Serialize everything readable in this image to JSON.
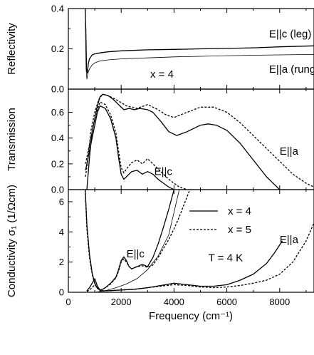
{
  "chart_data": [
    {
      "panel": "reflectivity",
      "type": "line",
      "ylabel": "Reflectivity",
      "xlim": [
        0,
        9300
      ],
      "ylim": [
        0,
        0.4
      ],
      "yticks": [
        "0.0",
        "0.2",
        "0.4"
      ],
      "annotations": [
        {
          "text": "E||c (leg)",
          "x": 7600,
          "y": 0.275
        },
        {
          "text": "E||a (rung)",
          "x": 7600,
          "y": 0.1
        },
        {
          "text": "x = 4",
          "x": 3100,
          "y": 0.075
        }
      ],
      "series": [
        {
          "style": "solid",
          "x": [
            640,
            660,
            690,
            720,
            760,
            800,
            900,
            1000,
            1200,
            1500,
            2000,
            3000,
            4000,
            5000,
            6000,
            7000,
            8000,
            9300
          ],
          "y": [
            0.4,
            0.3,
            0.1,
            0.08,
            0.13,
            0.15,
            0.17,
            0.175,
            0.18,
            0.185,
            0.19,
            0.195,
            0.197,
            0.2,
            0.202,
            0.205,
            0.21,
            0.215
          ]
        },
        {
          "style": "thin",
          "x": [
            640,
            670,
            700,
            740,
            800,
            900,
            1000,
            1200,
            1500,
            2000,
            3000,
            4000,
            5000,
            6000,
            7000,
            8000,
            9300
          ],
          "y": [
            0.4,
            0.1,
            0.05,
            0.08,
            0.1,
            0.12,
            0.13,
            0.14,
            0.145,
            0.15,
            0.155,
            0.16,
            0.163,
            0.166,
            0.168,
            0.17,
            0.172
          ]
        }
      ]
    },
    {
      "panel": "transmission",
      "type": "line",
      "ylabel": "Transmission",
      "xlim": [
        0,
        9300
      ],
      "ylim": [
        0,
        0.78
      ],
      "yticks": [
        "0.0",
        "0.2",
        "0.4",
        "0.6"
      ],
      "annotations": [
        {
          "text": "E||a",
          "x": 8000,
          "y": 0.3
        },
        {
          "text": "E||c",
          "x": 3250,
          "y": 0.14
        }
      ],
      "series": [
        {
          "style": "solid",
          "x": [
            700,
            800,
            900,
            1000,
            1100,
            1200,
            1300,
            1500,
            1700,
            1900,
            2100,
            2300,
            2500,
            2700,
            3000,
            3200,
            3500,
            3800,
            4100,
            4500,
            5000,
            5300,
            5600,
            6000,
            6500,
            7000,
            7500,
            8000
          ],
          "y": [
            0.0,
            0.25,
            0.45,
            0.55,
            0.65,
            0.72,
            0.74,
            0.73,
            0.7,
            0.66,
            0.62,
            0.63,
            0.62,
            0.63,
            0.62,
            0.6,
            0.53,
            0.45,
            0.42,
            0.45,
            0.5,
            0.51,
            0.5,
            0.46,
            0.36,
            0.23,
            0.1,
            0.0
          ]
        },
        {
          "style": "dashed",
          "x": [
            650,
            750,
            850,
            1000,
            1150,
            1300,
            1500,
            1800,
            2200,
            2600,
            3000,
            3400,
            3700,
            4000,
            4500,
            5000,
            5500,
            6000,
            6500,
            7000,
            7500,
            8000,
            8500,
            9000,
            9300
          ],
          "y": [
            0.1,
            0.25,
            0.45,
            0.6,
            0.7,
            0.74,
            0.73,
            0.7,
            0.65,
            0.63,
            0.66,
            0.62,
            0.58,
            0.56,
            0.6,
            0.64,
            0.64,
            0.6,
            0.52,
            0.42,
            0.32,
            0.22,
            0.12,
            0.05,
            0.02
          ]
        },
        {
          "style": "solid",
          "x": [
            650,
            800,
            900,
            1000,
            1100,
            1200,
            1400,
            1600,
            1800,
            1900,
            2000,
            2100,
            2200,
            2400,
            2600,
            2800,
            3000,
            3200,
            3400,
            3600,
            3800,
            4000
          ],
          "y": [
            0.15,
            0.3,
            0.4,
            0.5,
            0.6,
            0.65,
            0.63,
            0.55,
            0.4,
            0.25,
            0.12,
            0.08,
            0.1,
            0.14,
            0.15,
            0.12,
            0.14,
            0.12,
            0.08,
            0.05,
            0.02,
            0.0
          ]
        },
        {
          "style": "dashed",
          "x": [
            650,
            800,
            900,
            1000,
            1100,
            1200,
            1400,
            1600,
            1800,
            1900,
            2000,
            2100,
            2200,
            2400,
            2600,
            2800,
            3000,
            3200,
            3400,
            3600,
            3800,
            4000,
            4200,
            4500
          ],
          "y": [
            0.2,
            0.35,
            0.45,
            0.55,
            0.62,
            0.68,
            0.66,
            0.58,
            0.44,
            0.3,
            0.17,
            0.13,
            0.16,
            0.21,
            0.23,
            0.2,
            0.24,
            0.2,
            0.16,
            0.12,
            0.08,
            0.05,
            0.02,
            0.0
          ]
        }
      ]
    },
    {
      "panel": "conductivity",
      "type": "line",
      "ylabel": "Conductivity σ₁ (1/Ωcm)",
      "xlabel": "Frequency (cm⁻¹)",
      "xlim": [
        0,
        9300
      ],
      "ylim": [
        0,
        6.8
      ],
      "xticks": [
        "0",
        "2000",
        "4000",
        "6000",
        "8000"
      ],
      "xtick_values": [
        0,
        2000,
        4000,
        6000,
        8000
      ],
      "yticks": [
        "0",
        "2",
        "4",
        "6"
      ],
      "annotations": [
        {
          "text": "E||c",
          "x": 2200,
          "y": 2.55
        },
        {
          "text": "T = 4 K",
          "x": 5300,
          "y": 2.3
        },
        {
          "text": "E||a",
          "x": 8000,
          "y": 3.5
        }
      ],
      "legend": {
        "placement": "top-right",
        "entries": [
          {
            "label": "x = 4",
            "style": "solid"
          },
          {
            "label": "x = 5",
            "style": "dashed"
          }
        ]
      },
      "series": [
        {
          "style": "solid",
          "x": [
            640,
            700,
            800,
            900,
            1000,
            1100,
            1200,
            1300,
            1400,
            1600,
            1800,
            1900,
            2000,
            2100,
            2200,
            2300,
            2400,
            2600,
            2800,
            3000,
            3200,
            3400,
            3600,
            3800,
            4000
          ],
          "y": [
            6.8,
            4.5,
            2.5,
            1.3,
            0.6,
            0.25,
            0.15,
            0.2,
            0.3,
            0.6,
            1.0,
            1.5,
            2.1,
            2.35,
            2.1,
            1.7,
            1.55,
            1.7,
            1.85,
            1.7,
            2.3,
            3.2,
            4.3,
            5.5,
            6.8
          ]
        },
        {
          "style": "dashed",
          "x": [
            640,
            700,
            800,
            900,
            1000,
            1100,
            1200,
            1300,
            1400,
            1600,
            1800,
            1900,
            2000,
            2100,
            2200,
            2300,
            2400,
            2600,
            2800,
            3000,
            3200,
            3400,
            3600,
            3800,
            4000,
            4200,
            4400,
            4600
          ],
          "y": [
            6.8,
            4.2,
            2.3,
            1.2,
            0.55,
            0.25,
            0.15,
            0.2,
            0.3,
            0.55,
            0.95,
            1.4,
            2.0,
            2.2,
            2.0,
            1.7,
            1.55,
            1.7,
            1.75,
            1.65,
            1.8,
            2.3,
            2.9,
            3.5,
            4.2,
            5.0,
            5.9,
            6.8
          ]
        },
        {
          "style": "thin",
          "x": [
            1000,
            1400,
            1800,
            2200,
            2600,
            3000,
            3400,
            3800,
            4200
          ],
          "y": [
            0.0,
            0.1,
            0.3,
            0.55,
            0.9,
            1.5,
            2.4,
            3.8,
            6.8
          ]
        },
        {
          "style": "solid",
          "x": [
            700,
            800,
            900,
            1000,
            1100,
            1200,
            1300,
            1500,
            2000,
            2500,
            3000,
            3500,
            4000,
            4500,
            5000,
            5500,
            6000,
            6500,
            7000,
            7500,
            7800,
            8100
          ],
          "y": [
            0.1,
            0.3,
            0.6,
            0.9,
            0.4,
            0.15,
            0.1,
            0.1,
            0.15,
            0.2,
            0.3,
            0.45,
            0.6,
            0.5,
            0.4,
            0.4,
            0.5,
            0.8,
            1.2,
            1.9,
            2.6,
            3.4
          ]
        },
        {
          "style": "dashed",
          "x": [
            700,
            800,
            900,
            1000,
            1100,
            1200,
            1300,
            1500,
            2000,
            2500,
            3000,
            3500,
            4000,
            4500,
            5000,
            5500,
            6000,
            6500,
            7000,
            7500,
            8000,
            8500,
            9000,
            9300
          ],
          "y": [
            0.05,
            0.15,
            0.3,
            0.5,
            0.3,
            0.1,
            0.08,
            0.1,
            0.15,
            0.2,
            0.3,
            0.4,
            0.5,
            0.45,
            0.35,
            0.3,
            0.35,
            0.45,
            0.6,
            0.8,
            1.2,
            2.0,
            3.4,
            4.6
          ]
        }
      ]
    }
  ]
}
